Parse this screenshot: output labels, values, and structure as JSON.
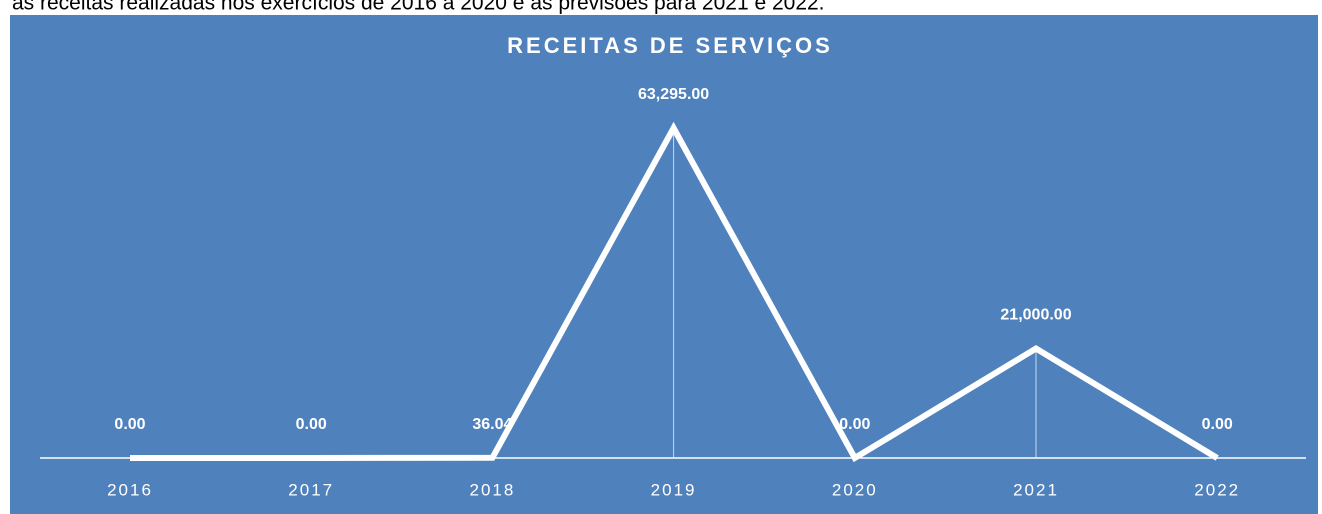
{
  "header_text": "as receitas realizadas nos exercícios de 2016 a 2020 e as previsões para 2021 e 2022.",
  "chart_data": {
    "type": "line",
    "title": "RECEITAS DE SERVIÇOS",
    "categories": [
      "2016",
      "2017",
      "2018",
      "2019",
      "2020",
      "2021",
      "2022"
    ],
    "series": [
      {
        "name": "Receitas de Serviços",
        "color": "#ffffff",
        "values": [
          0,
          0,
          36.04,
          63295,
          0,
          21000,
          0
        ],
        "value_labels": [
          "0.00",
          "0.00",
          "36.04",
          "63,295.00",
          "0.00",
          "21,000.00",
          "0.00"
        ]
      }
    ]
  }
}
